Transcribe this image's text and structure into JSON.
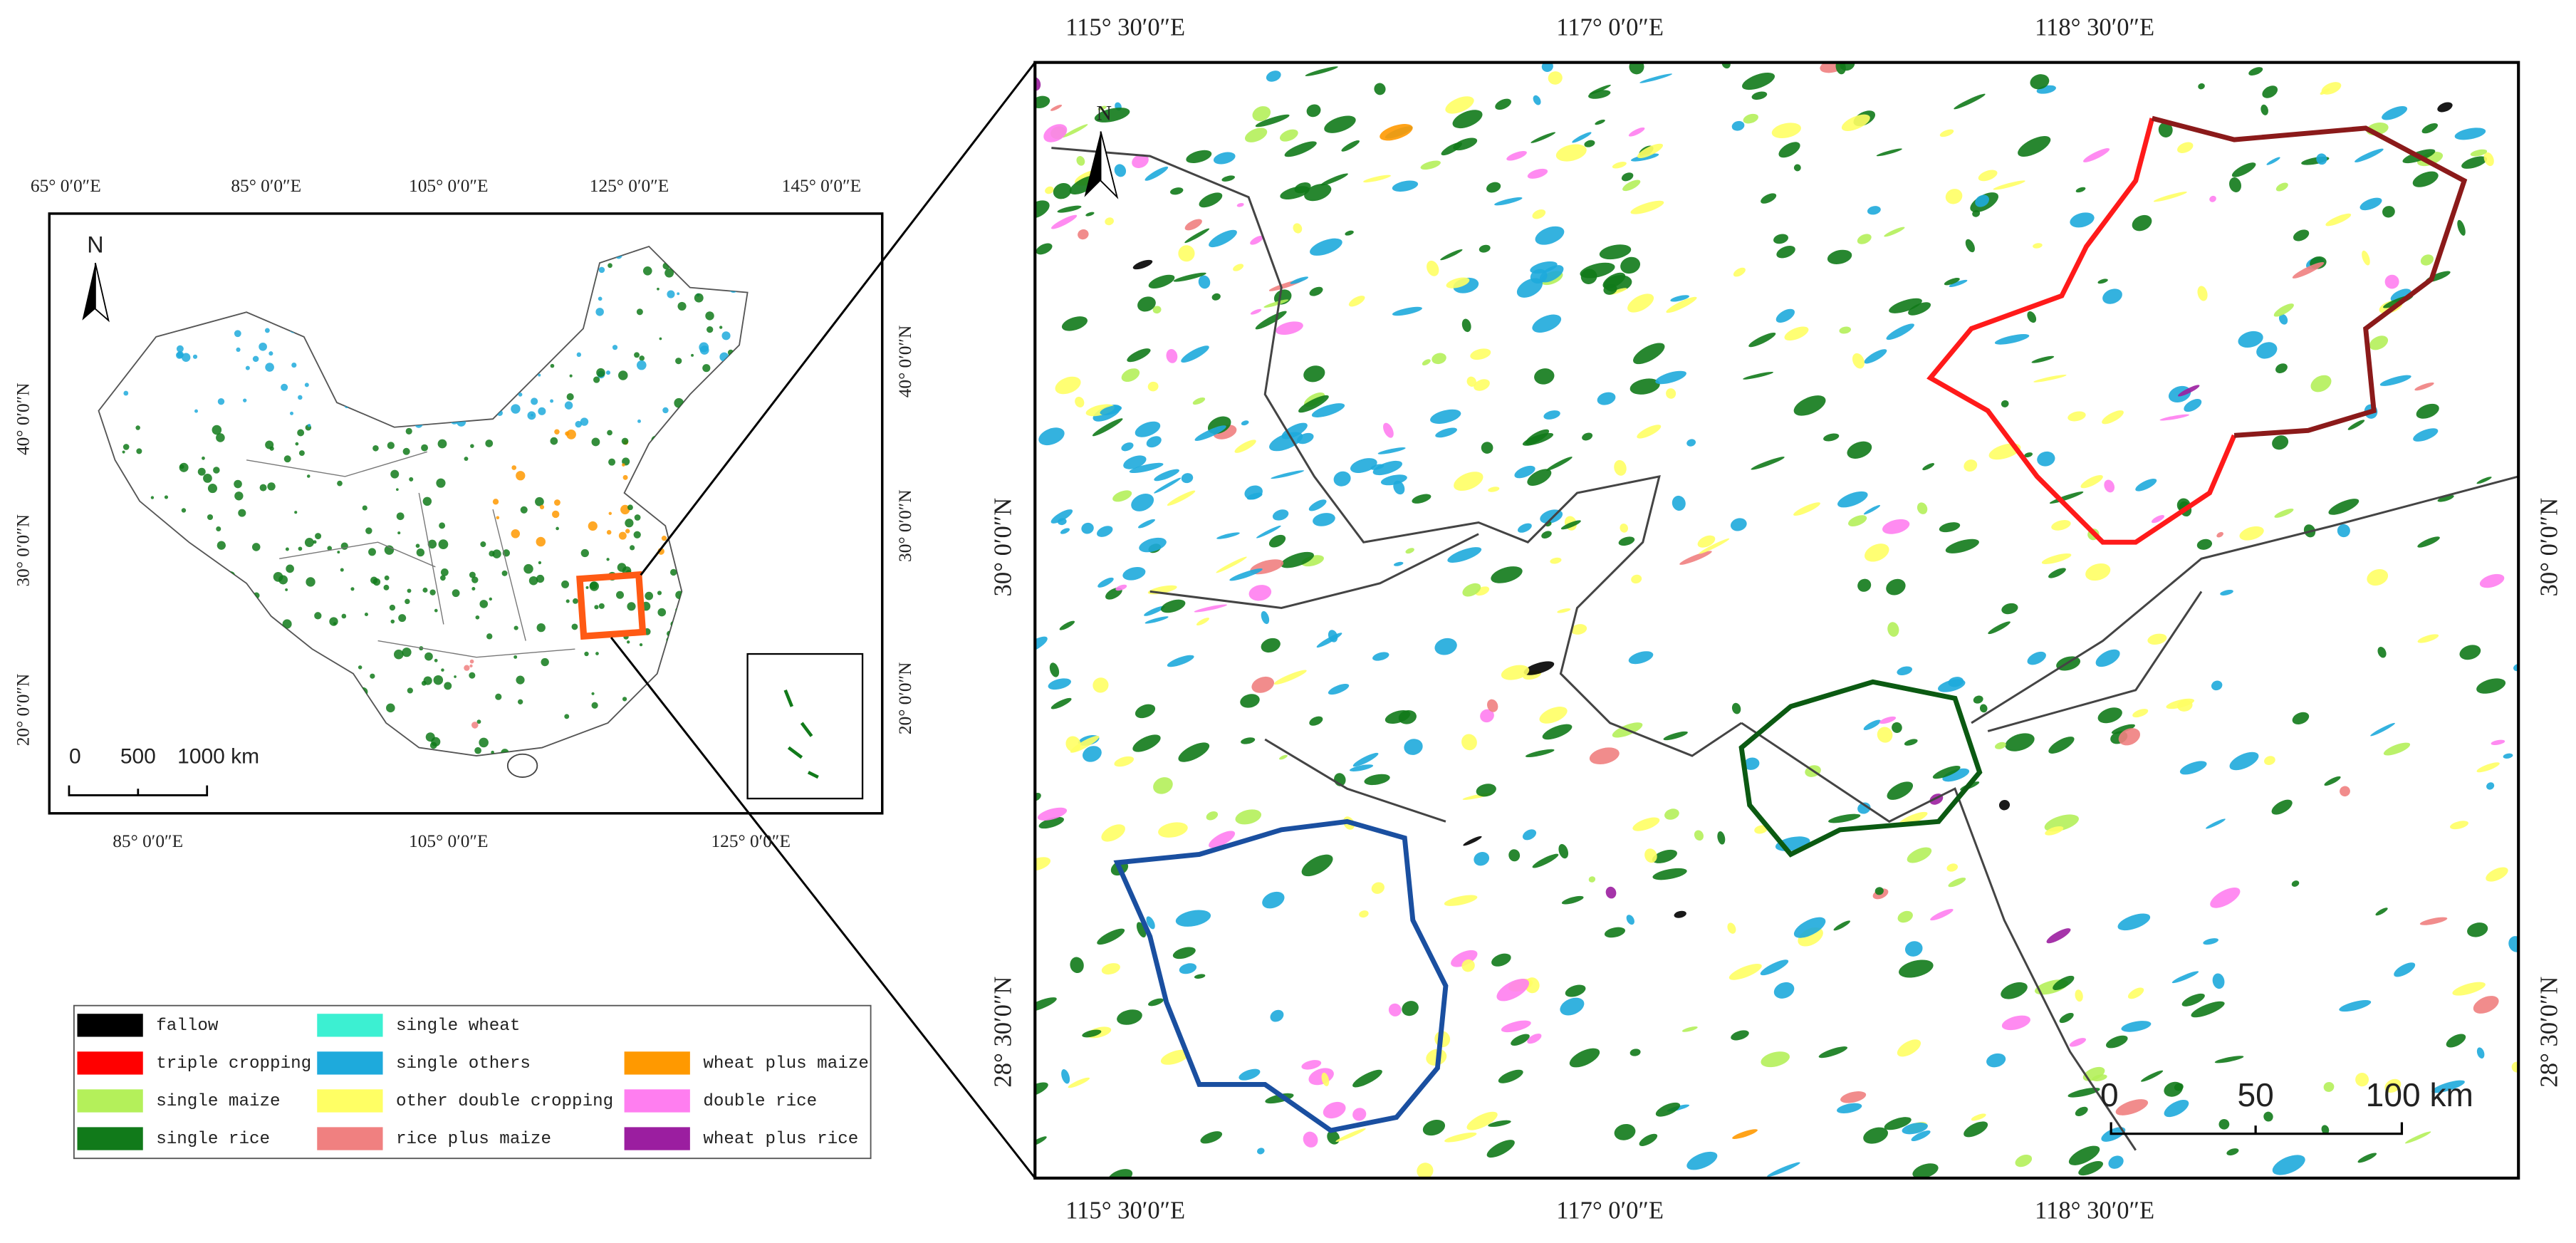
{
  "inset_map": {
    "north": "N",
    "top_labels": [
      "65° 0′0″E",
      "85° 0′0″E",
      "105° 0′0″E",
      "125° 0′0″E",
      "145° 0′0″E"
    ],
    "bottom_labels": [
      "85° 0′0″E",
      "105° 0′0″E",
      "125° 0′0″E"
    ],
    "left_labels": [
      "40° 0′0″N",
      "30° 0′0″N",
      "20° 0′0″N"
    ],
    "right_labels": [
      "40° 0′0″N",
      "30° 0′0″N",
      "20° 0′0″N"
    ],
    "scale_labels": [
      "0",
      "500",
      "1000 km"
    ]
  },
  "main_map": {
    "north": "N",
    "top_labels": [
      "115° 30′0″E",
      "117° 0′0″E",
      "118° 30′0″E"
    ],
    "bottom_labels": [
      "115° 30′0″E",
      "117° 0′0″E",
      "118° 30′0″E"
    ],
    "left_labels": [
      "30° 0′0″N",
      "28° 30′0″N"
    ],
    "right_labels": [
      "30° 0′0″N",
      "28° 30′0″N"
    ],
    "scale_labels": [
      "0",
      "50",
      "100  km"
    ]
  },
  "legend": [
    {
      "name": "fallow",
      "color": "#000000"
    },
    {
      "name": "triple cropping",
      "color": "#ff0000"
    },
    {
      "name": "single maize",
      "color": "#b4f05a"
    },
    {
      "name": "single rice",
      "color": "#117a1a"
    },
    {
      "name": "single wheat",
      "color": "#3cf0d2"
    },
    {
      "name": "single others",
      "color": "#1eaadc"
    },
    {
      "name": "other double cropping",
      "color": "#ffff64"
    },
    {
      "name": "rice plus maize",
      "color": "#f08080"
    },
    {
      "name": "wheat plus maize",
      "color": "#ff9900"
    },
    {
      "name": "double rice",
      "color": "#ff7ef0"
    },
    {
      "name": "wheat plus rice",
      "color": "#9b1ea0"
    }
  ]
}
